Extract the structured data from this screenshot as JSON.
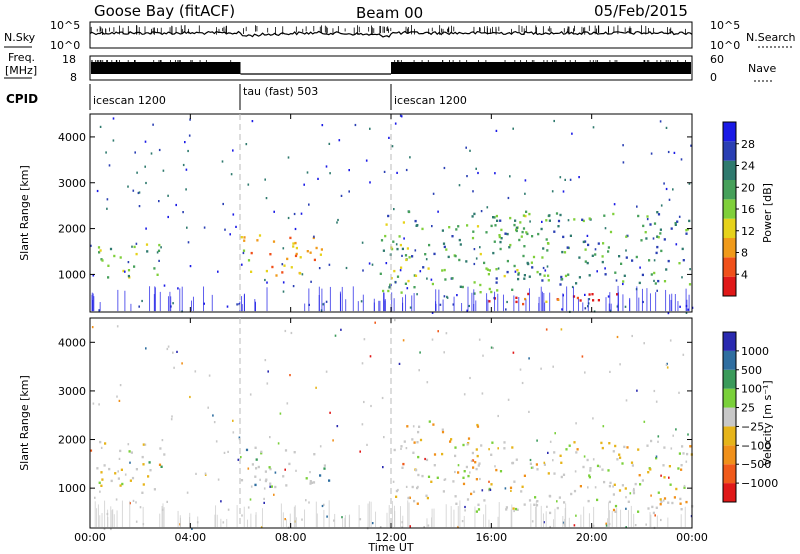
{
  "header": {
    "station": "Goose Bay (fitACF)",
    "beam": "Beam 00",
    "date": "05/Feb/2015"
  },
  "noise_panel": {
    "left_label": "N.Sky",
    "left_ticks": [
      "10^5",
      "10^0"
    ],
    "right_label": "N.Search",
    "right_ticks": [
      "10^5",
      "10^0"
    ]
  },
  "freq_panel": {
    "left_label_1": "Freq.",
    "left_label_2": "[MHz]",
    "left_ticks": [
      "18",
      "8"
    ],
    "right_label": "Nave",
    "right_ticks": [
      "60",
      "0"
    ]
  },
  "cpid_panel": {
    "label": "CPID",
    "segments": [
      {
        "name": "icescan 1200",
        "start_hour": 0,
        "end_hour": 6
      },
      {
        "name": "tau (fast) 503",
        "start_hour": 6,
        "end_hour": 12
      },
      {
        "name": "icescan 1200",
        "start_hour": 12,
        "end_hour": 24
      }
    ]
  },
  "power_panel": {
    "ylabel": "Slant Range [km]",
    "yticks": [
      "4000",
      "3000",
      "2000",
      "1000"
    ],
    "colorbar_label": "Power [dB]",
    "colorbar_ticks": [
      "28",
      "24",
      "20",
      "16",
      "12",
      "8",
      "4"
    ],
    "colors": [
      "#1a1ae6",
      "#2a3fb3",
      "#2f7a6e",
      "#46a05a",
      "#7fcf3a",
      "#e6d21a",
      "#f09a1a",
      "#f0501a",
      "#e01818"
    ]
  },
  "velocity_panel": {
    "ylabel": "Slant Range [km]",
    "yticks": [
      "4000",
      "3000",
      "2000",
      "1000"
    ],
    "colorbar_label": "Velocity [m s⁻¹]",
    "colorbar_ticks": [
      "1000",
      "500",
      "100",
      "25",
      "−25",
      "−100",
      "−500",
      "−1000"
    ],
    "colors": [
      "#2a2ab0",
      "#2f6ea0",
      "#3a9a5a",
      "#7ad03a",
      "#c8c8c8",
      "#e6b41a",
      "#f0901a",
      "#f05a1a",
      "#e01818"
    ]
  },
  "x_axis": {
    "label": "Time UT",
    "ticks": [
      "00:00",
      "04:00",
      "08:00",
      "12:00",
      "16:00",
      "20:00",
      "00:00"
    ]
  },
  "chart_data": [
    {
      "type": "line",
      "title": "Goose Bay (fitACF) Beam 00 05/Feb/2015",
      "name": "noise",
      "xlabel": "",
      "ylabel": "N.Sky",
      "x_range_hours": [
        0,
        24
      ],
      "y_scale": "log",
      "ylim": [
        1,
        100000
      ]
    },
    {
      "type": "line",
      "name": "frequency",
      "ylabel": "Freq. [MHz]",
      "ylim": [
        8,
        18
      ],
      "x_range_hours": [
        0,
        24
      ]
    },
    {
      "type": "heatmap",
      "name": "power",
      "xlabel": "Time UT",
      "ylabel": "Slant Range [km]",
      "x_range_hours": [
        0,
        24
      ],
      "ylim": [
        180,
        4500
      ],
      "zlabel": "Power [dB]",
      "zlim": [
        0,
        30
      ],
      "blobs": [
        {
          "t0": 0.2,
          "t1": 2.8,
          "r0": 900,
          "r1": 1700,
          "level": 0.45
        },
        {
          "t0": 6.0,
          "t1": 9.5,
          "r0": 1000,
          "r1": 1900,
          "level": 0.7
        },
        {
          "t0": 11.5,
          "t1": 17.5,
          "r0": 600,
          "r1": 2400,
          "level": 0.4
        },
        {
          "t0": 15.5,
          "t1": 21.0,
          "r0": 350,
          "r1": 650,
          "level": 0.85
        },
        {
          "t0": 16.0,
          "t1": 24.0,
          "r0": 800,
          "r1": 2400,
          "level": 0.35
        }
      ]
    },
    {
      "type": "heatmap",
      "name": "velocity",
      "xlabel": "Time UT",
      "ylabel": "Slant Range [km]",
      "x_range_hours": [
        0,
        24
      ],
      "ylim": [
        180,
        4500
      ],
      "zlabel": "Velocity [m s⁻¹]",
      "zlim": [
        -1000,
        1000
      ],
      "blobs": [
        {
          "t0": 0.2,
          "t1": 3.0,
          "r0": 900,
          "r1": 2000,
          "level": 0.5
        },
        {
          "t0": 6.0,
          "t1": 9.5,
          "r0": 1000,
          "r1": 1900,
          "level": 0.3
        },
        {
          "t0": 12.0,
          "t1": 15.5,
          "r0": 700,
          "r1": 2400,
          "level": 0.6
        },
        {
          "t0": 15.0,
          "t1": 24.0,
          "r0": 500,
          "r1": 2000,
          "level": 0.55
        }
      ]
    }
  ]
}
